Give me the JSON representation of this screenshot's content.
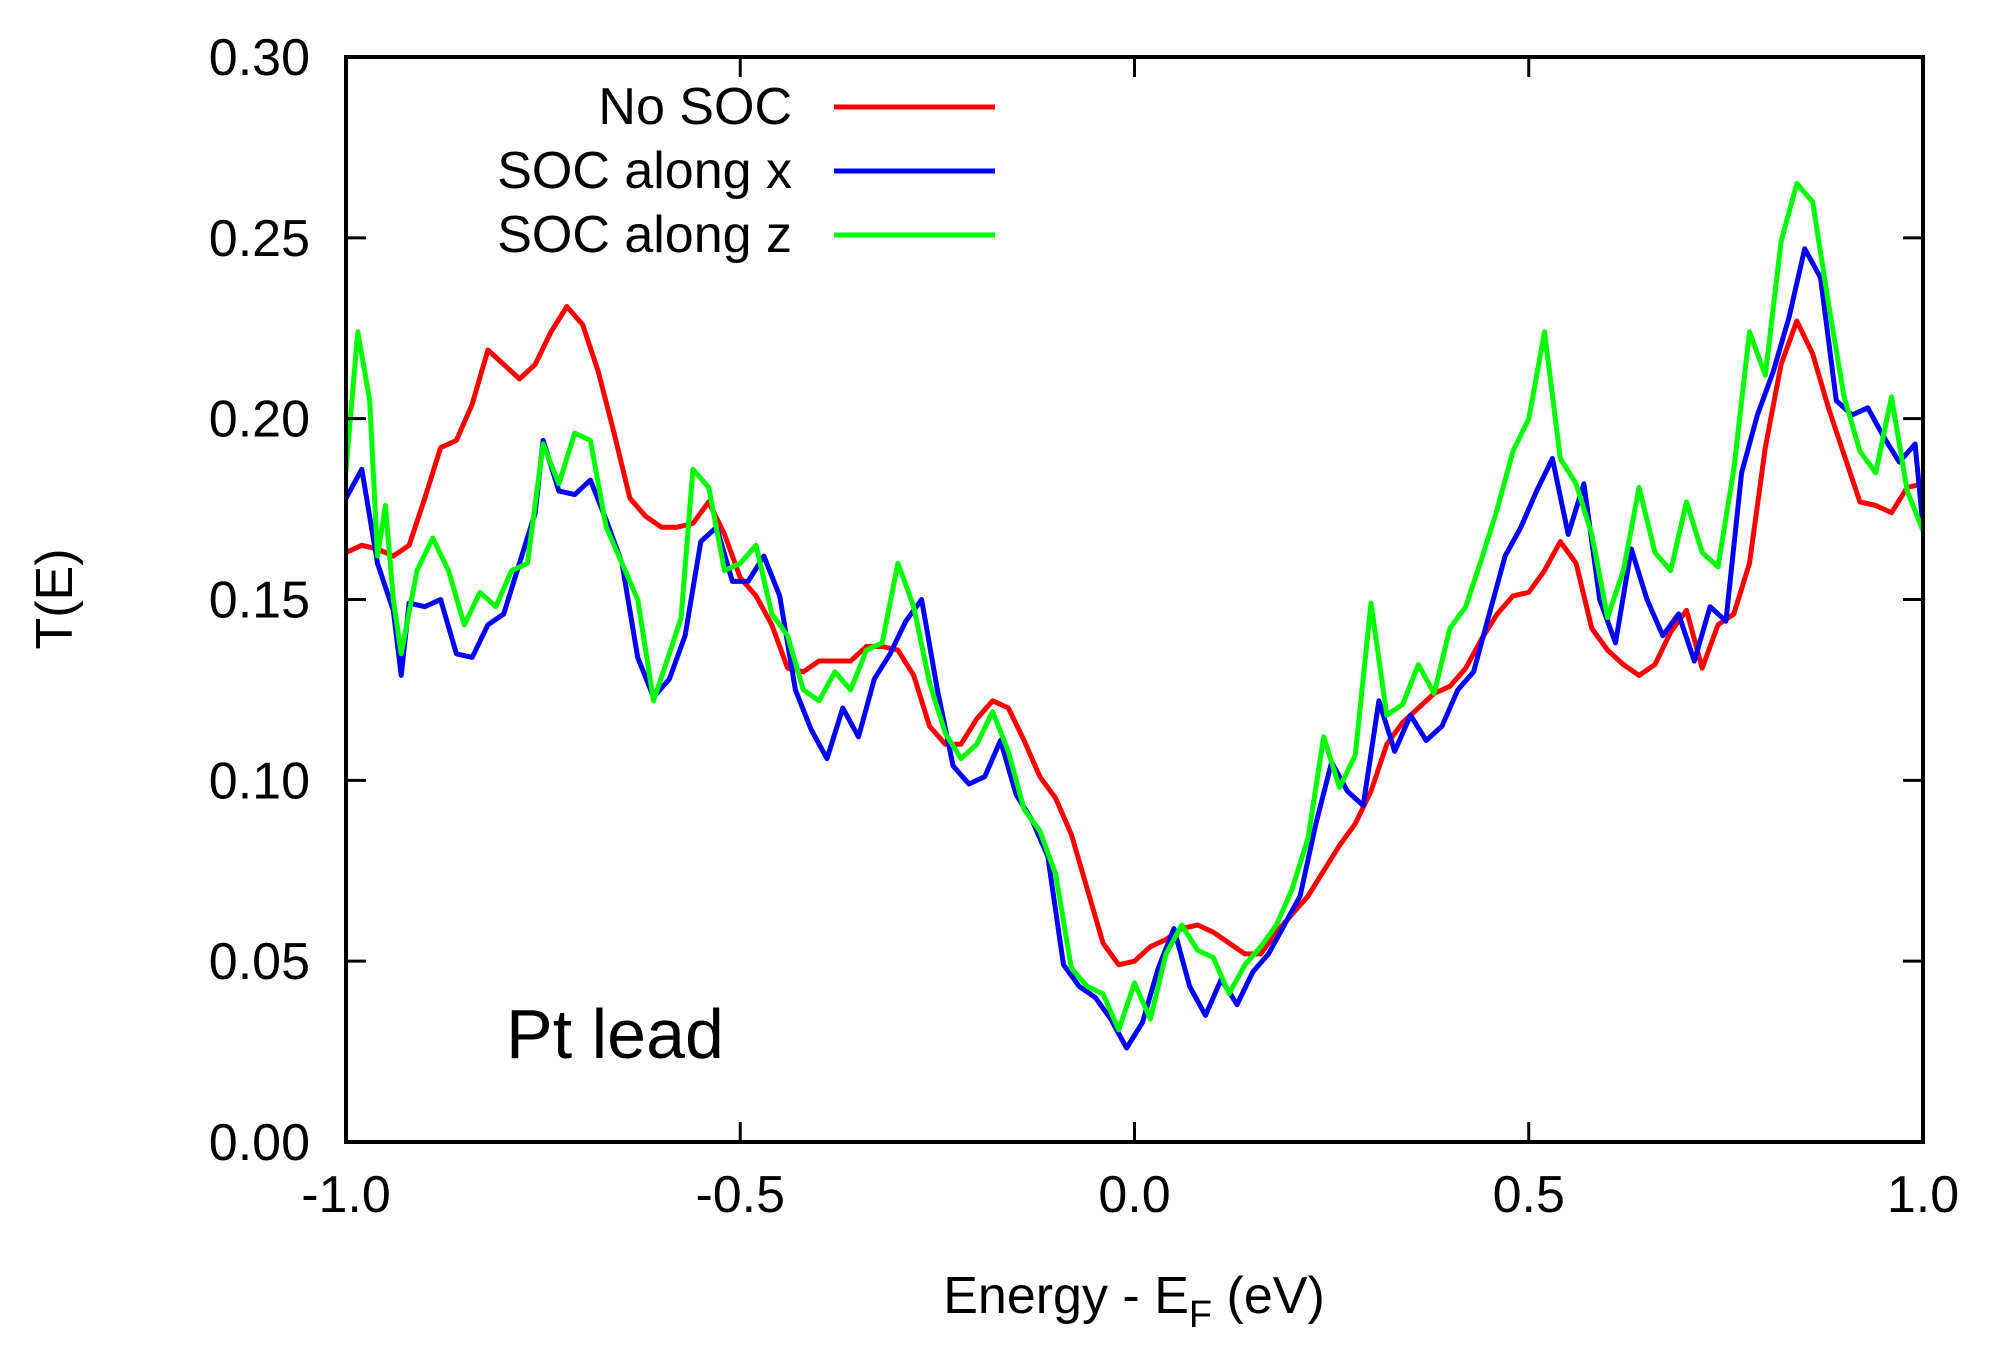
{
  "chart_data": {
    "type": "line",
    "title": "",
    "xlabel": {
      "main": "Energy - E",
      "sub": "F",
      "tail": " (eV)"
    },
    "ylabel": "T(E)",
    "xlim": [
      -1.0,
      1.0
    ],
    "ylim": [
      0.0,
      0.3
    ],
    "xticks": [
      -1.0,
      -0.5,
      0.0,
      0.5,
      1.0
    ],
    "xtick_labels": [
      "-1.0",
      "-0.5",
      "0.0",
      "0.5",
      "1.0"
    ],
    "yticks": [
      0.0,
      0.05,
      0.1,
      0.15,
      0.2,
      0.25,
      0.3
    ],
    "ytick_labels": [
      "0.00",
      "0.05",
      "0.10",
      "0.15",
      "0.20",
      "0.25",
      "0.30"
    ],
    "grid": false,
    "legend_position": "top-left",
    "annotation": "Pt lead",
    "series": [
      {
        "name": "No SOC",
        "color": "#ff0000",
        "points": [
          [
            -1.0,
            0.163
          ],
          [
            -0.98,
            0.165
          ],
          [
            -0.96,
            0.164
          ],
          [
            -0.94,
            0.162
          ],
          [
            -0.92,
            0.165
          ],
          [
            -0.9,
            0.178
          ],
          [
            -0.88,
            0.192
          ],
          [
            -0.86,
            0.194
          ],
          [
            -0.84,
            0.204
          ],
          [
            -0.82,
            0.219
          ],
          [
            -0.8,
            0.215
          ],
          [
            -0.78,
            0.211
          ],
          [
            -0.76,
            0.215
          ],
          [
            -0.74,
            0.224
          ],
          [
            -0.72,
            0.231
          ],
          [
            -0.7,
            0.226
          ],
          [
            -0.68,
            0.213
          ],
          [
            -0.66,
            0.196
          ],
          [
            -0.64,
            0.178
          ],
          [
            -0.62,
            0.173
          ],
          [
            -0.6,
            0.17
          ],
          [
            -0.58,
            0.17
          ],
          [
            -0.56,
            0.171
          ],
          [
            -0.54,
            0.177
          ],
          [
            -0.52,
            0.168
          ],
          [
            -0.5,
            0.156
          ],
          [
            -0.48,
            0.151
          ],
          [
            -0.46,
            0.143
          ],
          [
            -0.44,
            0.131
          ],
          [
            -0.42,
            0.13
          ],
          [
            -0.4,
            0.133
          ],
          [
            -0.38,
            0.133
          ],
          [
            -0.36,
            0.133
          ],
          [
            -0.34,
            0.137
          ],
          [
            -0.32,
            0.137
          ],
          [
            -0.3,
            0.136
          ],
          [
            -0.28,
            0.129
          ],
          [
            -0.26,
            0.115
          ],
          [
            -0.24,
            0.11
          ],
          [
            -0.22,
            0.11
          ],
          [
            -0.2,
            0.117
          ],
          [
            -0.18,
            0.122
          ],
          [
            -0.16,
            0.12
          ],
          [
            -0.14,
            0.111
          ],
          [
            -0.12,
            0.101
          ],
          [
            -0.1,
            0.095
          ],
          [
            -0.08,
            0.085
          ],
          [
            -0.06,
            0.07
          ],
          [
            -0.04,
            0.055
          ],
          [
            -0.02,
            0.049
          ],
          [
            0.0,
            0.05
          ],
          [
            0.02,
            0.054
          ],
          [
            0.04,
            0.056
          ],
          [
            0.06,
            0.059
          ],
          [
            0.08,
            0.06
          ],
          [
            0.1,
            0.058
          ],
          [
            0.12,
            0.055
          ],
          [
            0.14,
            0.052
          ],
          [
            0.16,
            0.052
          ],
          [
            0.18,
            0.058
          ],
          [
            0.2,
            0.063
          ],
          [
            0.22,
            0.068
          ],
          [
            0.24,
            0.075
          ],
          [
            0.26,
            0.082
          ],
          [
            0.28,
            0.088
          ],
          [
            0.3,
            0.097
          ],
          [
            0.32,
            0.11
          ],
          [
            0.34,
            0.116
          ],
          [
            0.36,
            0.12
          ],
          [
            0.38,
            0.124
          ],
          [
            0.4,
            0.126
          ],
          [
            0.42,
            0.131
          ],
          [
            0.44,
            0.139
          ],
          [
            0.46,
            0.146
          ],
          [
            0.48,
            0.151
          ],
          [
            0.5,
            0.152
          ],
          [
            0.52,
            0.158
          ],
          [
            0.54,
            0.166
          ],
          [
            0.56,
            0.16
          ],
          [
            0.58,
            0.142
          ],
          [
            0.6,
            0.136
          ],
          [
            0.62,
            0.132
          ],
          [
            0.64,
            0.129
          ],
          [
            0.66,
            0.132
          ],
          [
            0.68,
            0.141
          ],
          [
            0.7,
            0.147
          ],
          [
            0.72,
            0.131
          ],
          [
            0.74,
            0.143
          ],
          [
            0.76,
            0.146
          ],
          [
            0.78,
            0.16
          ],
          [
            0.8,
            0.192
          ],
          [
            0.82,
            0.215
          ],
          [
            0.84,
            0.227
          ],
          [
            0.86,
            0.218
          ],
          [
            0.88,
            0.203
          ],
          [
            0.9,
            0.19
          ],
          [
            0.92,
            0.177
          ],
          [
            0.94,
            0.176
          ],
          [
            0.96,
            0.174
          ],
          [
            0.98,
            0.181
          ],
          [
            1.0,
            0.182
          ]
        ]
      },
      {
        "name": "SOC along x",
        "color": "#0000ff",
        "points": [
          [
            -1.0,
            0.178
          ],
          [
            -0.98,
            0.186
          ],
          [
            -0.96,
            0.16
          ],
          [
            -0.94,
            0.147
          ],
          [
            -0.93,
            0.129
          ],
          [
            -0.92,
            0.149
          ],
          [
            -0.9,
            0.148
          ],
          [
            -0.88,
            0.15
          ],
          [
            -0.86,
            0.135
          ],
          [
            -0.84,
            0.134
          ],
          [
            -0.82,
            0.143
          ],
          [
            -0.8,
            0.146
          ],
          [
            -0.78,
            0.16
          ],
          [
            -0.76,
            0.174
          ],
          [
            -0.75,
            0.194
          ],
          [
            -0.73,
            0.18
          ],
          [
            -0.71,
            0.179
          ],
          [
            -0.69,
            0.183
          ],
          [
            -0.67,
            0.172
          ],
          [
            -0.65,
            0.16
          ],
          [
            -0.63,
            0.134
          ],
          [
            -0.61,
            0.123
          ],
          [
            -0.59,
            0.128
          ],
          [
            -0.57,
            0.14
          ],
          [
            -0.55,
            0.166
          ],
          [
            -0.53,
            0.17
          ],
          [
            -0.51,
            0.155
          ],
          [
            -0.49,
            0.155
          ],
          [
            -0.47,
            0.162
          ],
          [
            -0.45,
            0.151
          ],
          [
            -0.43,
            0.125
          ],
          [
            -0.41,
            0.114
          ],
          [
            -0.39,
            0.106
          ],
          [
            -0.37,
            0.12
          ],
          [
            -0.35,
            0.112
          ],
          [
            -0.33,
            0.128
          ],
          [
            -0.31,
            0.135
          ],
          [
            -0.29,
            0.144
          ],
          [
            -0.27,
            0.15
          ],
          [
            -0.25,
            0.125
          ],
          [
            -0.23,
            0.104
          ],
          [
            -0.21,
            0.099
          ],
          [
            -0.19,
            0.101
          ],
          [
            -0.17,
            0.111
          ],
          [
            -0.15,
            0.096
          ],
          [
            -0.13,
            0.089
          ],
          [
            -0.11,
            0.079
          ],
          [
            -0.09,
            0.049
          ],
          [
            -0.07,
            0.043
          ],
          [
            -0.05,
            0.04
          ],
          [
            -0.03,
            0.034
          ],
          [
            -0.01,
            0.026
          ],
          [
            0.01,
            0.033
          ],
          [
            0.03,
            0.048
          ],
          [
            0.05,
            0.059
          ],
          [
            0.07,
            0.043
          ],
          [
            0.09,
            0.035
          ],
          [
            0.11,
            0.045
          ],
          [
            0.13,
            0.038
          ],
          [
            0.15,
            0.047
          ],
          [
            0.17,
            0.052
          ],
          [
            0.19,
            0.06
          ],
          [
            0.21,
            0.068
          ],
          [
            0.23,
            0.088
          ],
          [
            0.25,
            0.105
          ],
          [
            0.27,
            0.097
          ],
          [
            0.29,
            0.093
          ],
          [
            0.31,
            0.122
          ],
          [
            0.33,
            0.108
          ],
          [
            0.35,
            0.118
          ],
          [
            0.37,
            0.111
          ],
          [
            0.39,
            0.115
          ],
          [
            0.41,
            0.125
          ],
          [
            0.43,
            0.13
          ],
          [
            0.45,
            0.146
          ],
          [
            0.47,
            0.162
          ],
          [
            0.49,
            0.17
          ],
          [
            0.51,
            0.18
          ],
          [
            0.53,
            0.189
          ],
          [
            0.55,
            0.168
          ],
          [
            0.57,
            0.182
          ],
          [
            0.59,
            0.15
          ],
          [
            0.61,
            0.138
          ],
          [
            0.63,
            0.164
          ],
          [
            0.65,
            0.15
          ],
          [
            0.67,
            0.14
          ],
          [
            0.69,
            0.146
          ],
          [
            0.71,
            0.133
          ],
          [
            0.73,
            0.148
          ],
          [
            0.75,
            0.144
          ],
          [
            0.77,
            0.185
          ],
          [
            0.79,
            0.201
          ],
          [
            0.81,
            0.213
          ],
          [
            0.83,
            0.228
          ],
          [
            0.85,
            0.247
          ],
          [
            0.87,
            0.239
          ],
          [
            0.89,
            0.205
          ],
          [
            0.91,
            0.201
          ],
          [
            0.93,
            0.203
          ],
          [
            0.95,
            0.195
          ],
          [
            0.97,
            0.188
          ],
          [
            0.99,
            0.193
          ],
          [
            1.0,
            0.17
          ]
        ]
      },
      {
        "name": "SOC along z",
        "color": "#00ff00",
        "points": [
          [
            -1.0,
            0.186
          ],
          [
            -0.985,
            0.224
          ],
          [
            -0.97,
            0.205
          ],
          [
            -0.96,
            0.162
          ],
          [
            -0.95,
            0.176
          ],
          [
            -0.94,
            0.15
          ],
          [
            -0.93,
            0.135
          ],
          [
            -0.91,
            0.158
          ],
          [
            -0.89,
            0.167
          ],
          [
            -0.87,
            0.158
          ],
          [
            -0.85,
            0.143
          ],
          [
            -0.83,
            0.152
          ],
          [
            -0.81,
            0.148
          ],
          [
            -0.79,
            0.158
          ],
          [
            -0.77,
            0.16
          ],
          [
            -0.75,
            0.193
          ],
          [
            -0.73,
            0.182
          ],
          [
            -0.71,
            0.196
          ],
          [
            -0.69,
            0.194
          ],
          [
            -0.67,
            0.17
          ],
          [
            -0.65,
            0.16
          ],
          [
            -0.63,
            0.15
          ],
          [
            -0.61,
            0.122
          ],
          [
            -0.59,
            0.135
          ],
          [
            -0.575,
            0.145
          ],
          [
            -0.56,
            0.186
          ],
          [
            -0.54,
            0.181
          ],
          [
            -0.52,
            0.158
          ],
          [
            -0.5,
            0.16
          ],
          [
            -0.48,
            0.165
          ],
          [
            -0.46,
            0.146
          ],
          [
            -0.44,
            0.14
          ],
          [
            -0.42,
            0.125
          ],
          [
            -0.4,
            0.122
          ],
          [
            -0.38,
            0.13
          ],
          [
            -0.36,
            0.125
          ],
          [
            -0.34,
            0.136
          ],
          [
            -0.32,
            0.138
          ],
          [
            -0.3,
            0.16
          ],
          [
            -0.28,
            0.148
          ],
          [
            -0.26,
            0.127
          ],
          [
            -0.24,
            0.113
          ],
          [
            -0.22,
            0.106
          ],
          [
            -0.2,
            0.11
          ],
          [
            -0.18,
            0.119
          ],
          [
            -0.16,
            0.108
          ],
          [
            -0.14,
            0.092
          ],
          [
            -0.12,
            0.086
          ],
          [
            -0.1,
            0.074
          ],
          [
            -0.08,
            0.048
          ],
          [
            -0.06,
            0.043
          ],
          [
            -0.04,
            0.041
          ],
          [
            -0.02,
            0.031
          ],
          [
            0.0,
            0.044
          ],
          [
            0.02,
            0.034
          ],
          [
            0.04,
            0.052
          ],
          [
            0.06,
            0.06
          ],
          [
            0.08,
            0.053
          ],
          [
            0.1,
            0.051
          ],
          [
            0.12,
            0.041
          ],
          [
            0.14,
            0.049
          ],
          [
            0.16,
            0.054
          ],
          [
            0.18,
            0.06
          ],
          [
            0.2,
            0.07
          ],
          [
            0.22,
            0.084
          ],
          [
            0.24,
            0.112
          ],
          [
            0.26,
            0.098
          ],
          [
            0.28,
            0.107
          ],
          [
            0.3,
            0.149
          ],
          [
            0.32,
            0.118
          ],
          [
            0.34,
            0.121
          ],
          [
            0.36,
            0.132
          ],
          [
            0.38,
            0.124
          ],
          [
            0.4,
            0.142
          ],
          [
            0.42,
            0.148
          ],
          [
            0.44,
            0.161
          ],
          [
            0.46,
            0.175
          ],
          [
            0.48,
            0.191
          ],
          [
            0.5,
            0.2
          ],
          [
            0.52,
            0.224
          ],
          [
            0.54,
            0.189
          ],
          [
            0.56,
            0.182
          ],
          [
            0.58,
            0.168
          ],
          [
            0.6,
            0.145
          ],
          [
            0.62,
            0.158
          ],
          [
            0.64,
            0.181
          ],
          [
            0.66,
            0.163
          ],
          [
            0.68,
            0.158
          ],
          [
            0.7,
            0.177
          ],
          [
            0.72,
            0.163
          ],
          [
            0.74,
            0.159
          ],
          [
            0.76,
            0.186
          ],
          [
            0.78,
            0.224
          ],
          [
            0.8,
            0.212
          ],
          [
            0.82,
            0.249
          ],
          [
            0.84,
            0.265
          ],
          [
            0.86,
            0.26
          ],
          [
            0.88,
            0.232
          ],
          [
            0.9,
            0.206
          ],
          [
            0.92,
            0.191
          ],
          [
            0.94,
            0.185
          ],
          [
            0.96,
            0.206
          ],
          [
            0.98,
            0.18
          ],
          [
            1.0,
            0.169
          ]
        ]
      }
    ]
  }
}
